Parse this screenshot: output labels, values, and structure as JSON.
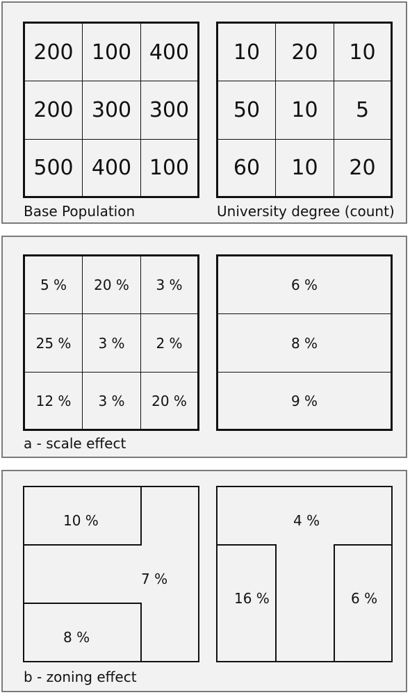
{
  "panel1": {
    "base_population": {
      "caption": "Base Population",
      "cells": [
        "200",
        "100",
        "400",
        "200",
        "300",
        "300",
        "500",
        "400",
        "100"
      ]
    },
    "university_degree": {
      "caption": "University degree (count)",
      "cells": [
        "10",
        "20",
        "10",
        "50",
        "10",
        "5",
        "60",
        "10",
        "20"
      ]
    }
  },
  "panel2": {
    "caption": "a - scale effect",
    "grid": {
      "cells": [
        "5 %",
        "20 %",
        "3 %",
        "25 %",
        "3 %",
        "2 %",
        "12 %",
        "3 %",
        "20 %"
      ]
    },
    "rows": [
      "6 %",
      "8 %",
      "9 %"
    ]
  },
  "panel3": {
    "caption": "b - zoning effect",
    "left_zones": [
      "10 %",
      "7 %",
      "8 %"
    ],
    "right_zones": [
      "4 %",
      "16 %",
      "6 %"
    ]
  }
}
